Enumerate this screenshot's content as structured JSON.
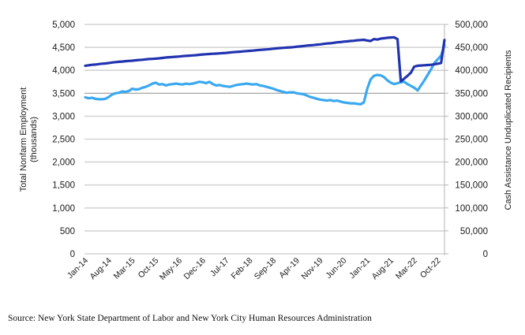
{
  "chart_data": {
    "type": "line",
    "title": "",
    "y_left": {
      "label_line1": "Total Nonfarm Employment",
      "label_line2": "(thousands)",
      "ticks": [
        "0",
        "500",
        "1,000",
        "1,500",
        "2,000",
        "2,500",
        "3,000",
        "3,500",
        "4,000",
        "4,500",
        "5,000"
      ],
      "range": [
        0,
        5000
      ]
    },
    "y_right": {
      "label": "Cash Assistance Unduplicated Recipients",
      "ticks": [
        "0",
        "50,000",
        "100,000",
        "150,000",
        "200,000",
        "250,000",
        "300,000",
        "350,000",
        "400,000",
        "450,000",
        "500,000"
      ],
      "range": [
        0,
        500000
      ]
    },
    "x_ticks": [
      "Jan-14",
      "Aug-14",
      "Mar-15",
      "Oct-15",
      "May-16",
      "Dec-16",
      "Jul-17",
      "Feb-18",
      "Sep-18",
      "Apr-19",
      "Nov-19",
      "Jun-20",
      "Jan-21",
      "Aug-21",
      "Mar-22",
      "Oct-22"
    ],
    "x_start": "Jan-14",
    "months": 108,
    "grid": true,
    "series": [
      {
        "name": "Total Nonfarm Employment",
        "axis": "left",
        "color": "#2233b0",
        "values": [
          4100,
          4110,
          4120,
          4125,
          4135,
          4145,
          4150,
          4160,
          4170,
          4178,
          4185,
          4190,
          4200,
          4205,
          4210,
          4218,
          4225,
          4230,
          4238,
          4245,
          4250,
          4255,
          4262,
          4270,
          4280,
          4285,
          4290,
          4295,
          4300,
          4310,
          4315,
          4320,
          4325,
          4330,
          4338,
          4345,
          4350,
          4355,
          4360,
          4365,
          4370,
          4375,
          4380,
          4388,
          4395,
          4400,
          4405,
          4412,
          4420,
          4425,
          4430,
          4438,
          4445,
          4450,
          4455,
          4462,
          4470,
          4478,
          4485,
          4490,
          4495,
          4500,
          4505,
          4515,
          4520,
          4530,
          4540,
          4545,
          4550,
          4560,
          4565,
          4575,
          4585,
          4590,
          4600,
          4610,
          4615,
          4625,
          4630,
          4640,
          4645,
          4655,
          4660,
          4665,
          4650,
          4640,
          4680,
          4670,
          4690,
          4700,
          4710,
          4715,
          4720,
          4680,
          3760,
          3820,
          3880,
          3950,
          4080,
          4100,
          4105,
          4110,
          4115,
          4120,
          4130,
          4145,
          4160,
          4660
        ]
      },
      {
        "name": "Cash Assistance Unduplicated Recipients",
        "axis": "right",
        "color": "#3aa8f0",
        "values": [
          341000,
          339000,
          340000,
          338000,
          337000,
          337000,
          338000,
          342000,
          347000,
          350000,
          351000,
          354000,
          353000,
          355000,
          360000,
          358000,
          359000,
          362000,
          364000,
          367000,
          371000,
          373000,
          369000,
          370000,
          367000,
          369000,
          370000,
          371000,
          370000,
          369000,
          371000,
          370000,
          371000,
          373000,
          375000,
          374000,
          372000,
          375000,
          370000,
          367000,
          368000,
          366000,
          365000,
          364000,
          366000,
          368000,
          369000,
          370000,
          371000,
          370000,
          369000,
          370000,
          367000,
          366000,
          364000,
          362000,
          360000,
          357000,
          355000,
          353000,
          351000,
          352000,
          352000,
          350000,
          349000,
          348000,
          345000,
          342000,
          340000,
          338000,
          336000,
          335000,
          334000,
          335000,
          333000,
          334000,
          332000,
          330000,
          329000,
          328000,
          328000,
          327000,
          326000,
          330000,
          360000,
          380000,
          388000,
          390000,
          389000,
          385000,
          378000,
          373000,
          370000,
          372000,
          374000,
          375000,
          370000,
          366000,
          362000,
          356000,
          367000,
          378000,
          390000,
          402000,
          416000,
          424000,
          432000,
          455000
        ]
      }
    ]
  },
  "source": "Source: New York State Department of Labor and New York City Human Resources Administration"
}
